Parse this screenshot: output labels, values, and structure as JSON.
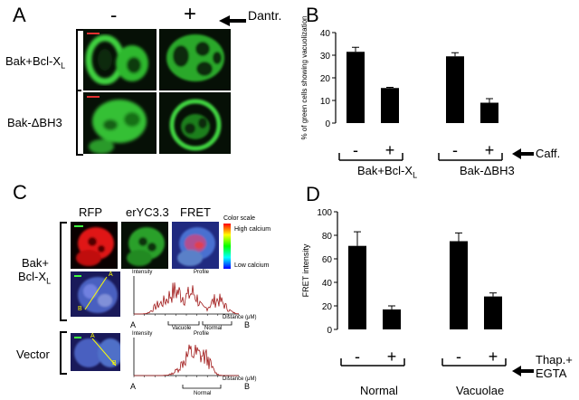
{
  "panels": {
    "a": {
      "letter": "A",
      "col_minus": "-",
      "col_plus": "+",
      "treatment": "Dantr.",
      "row1_label": "Bak+Bcl-X",
      "row1_sub": "L",
      "row2_label": "Bak-ΔBH3"
    },
    "b": {
      "letter": "B",
      "group1": "Bak+Bcl-X",
      "group1_sub": "L",
      "group2": "Bak-ΔBH3",
      "treatment": "Caff."
    },
    "c": {
      "letter": "C",
      "col_rfp": "RFP",
      "col_eryc": "erYC3.3",
      "col_fret": "FRET",
      "color_scale_title": "Color scale",
      "high_label": "High calcium",
      "low_label": "Low calcium",
      "row1_label_line1": "Bak+",
      "row1_label_line2": "Bcl-X",
      "row1_label_sub": "L",
      "row2_label": "Vector",
      "profile1": {
        "y_label": "Intensity",
        "title": "Profile",
        "x_label": "Distance (μM)",
        "start": "A",
        "end": "B",
        "region1": "Vacuole",
        "region2": "Normal",
        "point_a": "A",
        "point_b": "B"
      },
      "profile2": {
        "y_label": "Intensity",
        "title": "Profile",
        "x_label": "Distance (μM)",
        "start": "A",
        "end": "B",
        "region1": "Normal",
        "point_a": "A",
        "point_b": "B"
      }
    },
    "d": {
      "letter": "D",
      "group1": "Normal",
      "group2": "Vacuolae",
      "treatment_line1": "Thap.+",
      "treatment_line2": "EGTA"
    }
  },
  "chart_data": [
    {
      "type": "bar",
      "panel": "B",
      "ylabel": "% of green cells showing vacuolization",
      "xlabel": "",
      "ylim": [
        0,
        40
      ],
      "yticks": [
        0,
        10,
        20,
        30,
        40
      ],
      "categories": [
        "-",
        "+",
        "-",
        "+"
      ],
      "groups": [
        "Bak+Bcl-XL",
        "Bak-ΔBH3"
      ],
      "values": [
        31.5,
        15.5,
        29.5,
        9.0
      ],
      "errors": [
        2.0,
        0.3,
        1.6,
        1.8
      ],
      "bar_color": "#000000"
    },
    {
      "type": "bar",
      "panel": "D",
      "ylabel": "FRET intensity",
      "xlabel": "",
      "ylim": [
        0,
        100
      ],
      "yticks": [
        0,
        20,
        40,
        60,
        80,
        100
      ],
      "categories": [
        "-",
        "+",
        "-",
        "+"
      ],
      "groups": [
        "Normal",
        "Vacuolae"
      ],
      "values": [
        71,
        17,
        75,
        28
      ],
      "errors": [
        12,
        3,
        7,
        3
      ],
      "bar_color": "#000000"
    }
  ]
}
